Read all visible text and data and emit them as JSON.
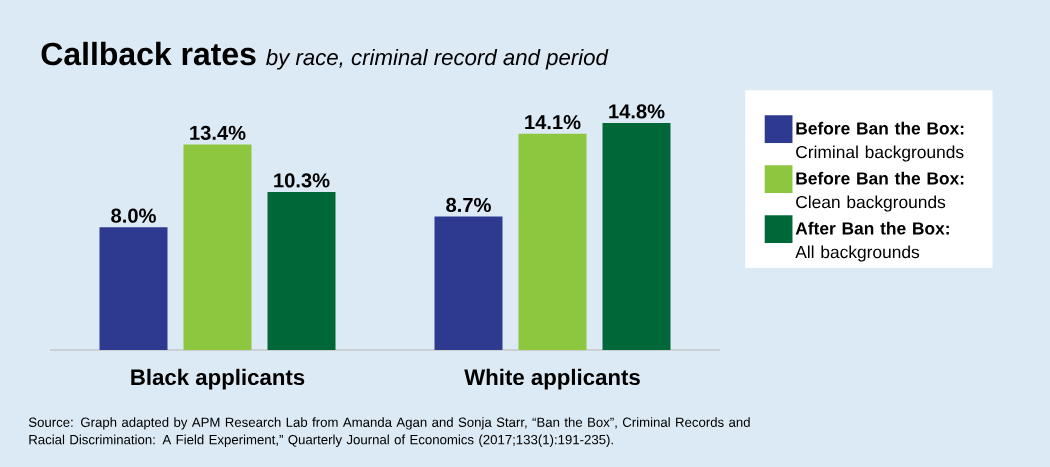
{
  "chart_data": {
    "type": "bar",
    "title": "Callback rates",
    "subtitle": "by race, criminal record and period",
    "categories": [
      "Black applicants",
      "White applicants"
    ],
    "series": [
      {
        "name": "**Before Ban the Box:** Criminal backgrounds",
        "color": "#2e3a8f",
        "values": [
          8.0,
          8.7
        ],
        "value_labels": [
          "8.0%",
          "8.7%"
        ]
      },
      {
        "name": "**Before Ban the Box:** Clean backgrounds",
        "color": "#8dc63f",
        "values": [
          13.4,
          14.1
        ],
        "value_labels": [
          "13.4%",
          "14.1%"
        ]
      },
      {
        "name": "**After Ban the Box:** All backgrounds",
        "color": "#006838",
        "values": [
          10.3,
          14.8
        ],
        "value_labels": [
          "10.3%",
          "14.8%"
        ]
      }
    ],
    "legend": "right",
    "annotations": [
      "Source: Graph adapted by APM Research Lab from Amanda Agan and Sonja Starr, “Ban the Box”, Criminal Records and Racial Discrimination: A Field Experiment,” Quarterly Journal of Economics (2017;133(1):191-235)."
    ]
  }
}
